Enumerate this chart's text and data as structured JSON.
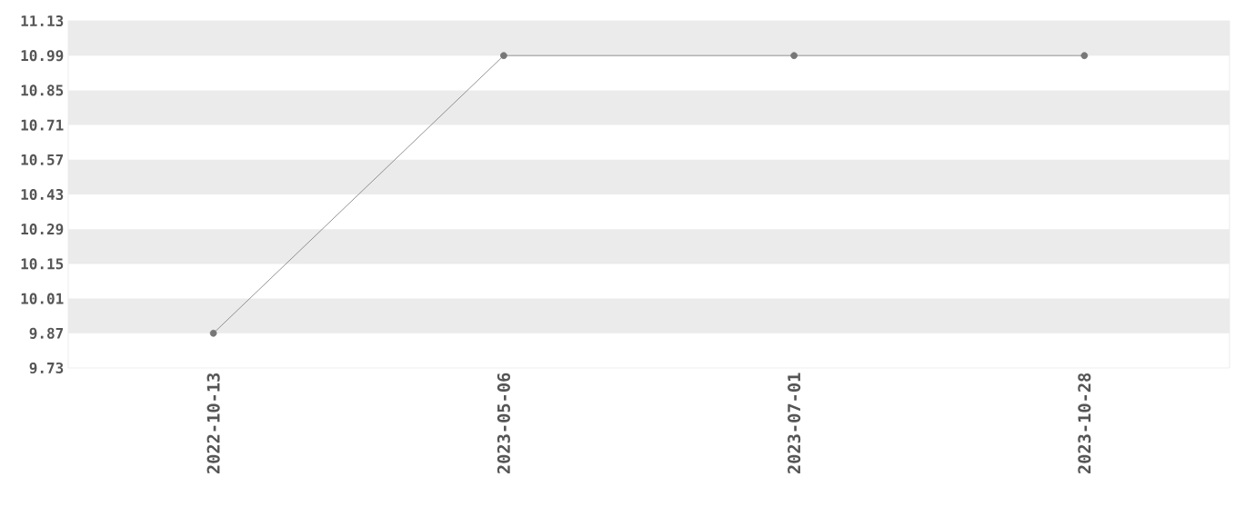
{
  "chart_data": {
    "type": "line",
    "categories": [
      "2022-10-13",
      "2023-05-06",
      "2023-07-01",
      "2023-10-28"
    ],
    "series": [
      {
        "color": "#777777",
        "values": [
          9.87,
          10.99,
          10.99,
          10.99
        ]
      }
    ],
    "ylim": [
      9.73,
      11.13
    ],
    "yticks": [
      9.73,
      9.87,
      10.01,
      10.15,
      10.29,
      10.43,
      10.57,
      10.71,
      10.85,
      10.99,
      11.13
    ],
    "bands": [
      {
        "axis": "y",
        "from": 9.87,
        "to": 10.01,
        "color": "#ebebeb"
      },
      {
        "axis": "y",
        "from": 10.15,
        "to": 10.29,
        "color": "#ebebeb"
      },
      {
        "axis": "y",
        "from": 10.43,
        "to": 10.57,
        "color": "#ebebeb"
      },
      {
        "axis": "y",
        "from": 10.71,
        "to": 10.85,
        "color": "#ebebeb"
      },
      {
        "axis": "y",
        "from": 10.99,
        "to": 11.13,
        "color": "#ebebeb"
      }
    ],
    "marker": "circle",
    "line_style": "solid"
  }
}
